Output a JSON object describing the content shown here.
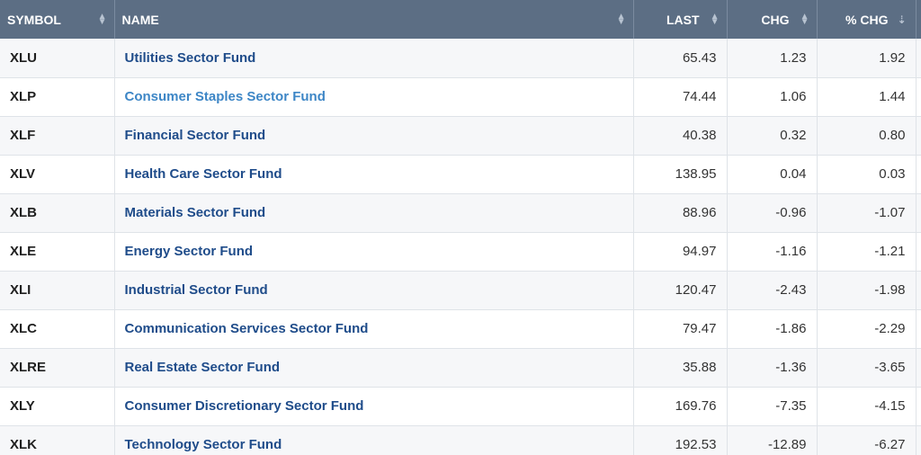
{
  "headers": {
    "symbol": "SYMBOL",
    "name": "NAME",
    "last": "LAST",
    "chg": "CHG",
    "pct_chg": "% CHG"
  },
  "colors": {
    "header_bg": "#5c6e84",
    "link": "#1f4c8a",
    "link_hover": "#3d86c6"
  },
  "rows": [
    {
      "symbol": "XLU",
      "name": "Utilities Sector Fund",
      "last": "65.43",
      "chg": "1.23",
      "pct": "1.92"
    },
    {
      "symbol": "XLP",
      "name": "Consumer Staples Sector Fund",
      "last": "74.44",
      "chg": "1.06",
      "pct": "1.44"
    },
    {
      "symbol": "XLF",
      "name": "Financial Sector Fund",
      "last": "40.38",
      "chg": "0.32",
      "pct": "0.80"
    },
    {
      "symbol": "XLV",
      "name": "Health Care Sector Fund",
      "last": "138.95",
      "chg": "0.04",
      "pct": "0.03"
    },
    {
      "symbol": "XLB",
      "name": "Materials Sector Fund",
      "last": "88.96",
      "chg": "-0.96",
      "pct": "-1.07"
    },
    {
      "symbol": "XLE",
      "name": "Energy Sector Fund",
      "last": "94.97",
      "chg": "-1.16",
      "pct": "-1.21"
    },
    {
      "symbol": "XLI",
      "name": "Industrial Sector Fund",
      "last": "120.47",
      "chg": "-2.43",
      "pct": "-1.98"
    },
    {
      "symbol": "XLC",
      "name": "Communication Services Sector Fund",
      "last": "79.47",
      "chg": "-1.86",
      "pct": "-2.29"
    },
    {
      "symbol": "XLRE",
      "name": "Real Estate Sector Fund",
      "last": "35.88",
      "chg": "-1.36",
      "pct": "-3.65"
    },
    {
      "symbol": "XLY",
      "name": "Consumer Discretionary Sector Fund",
      "last": "169.76",
      "chg": "-7.35",
      "pct": "-4.15"
    },
    {
      "symbol": "XLK",
      "name": "Technology Sector Fund",
      "last": "192.53",
      "chg": "-12.89",
      "pct": "-6.27"
    }
  ]
}
